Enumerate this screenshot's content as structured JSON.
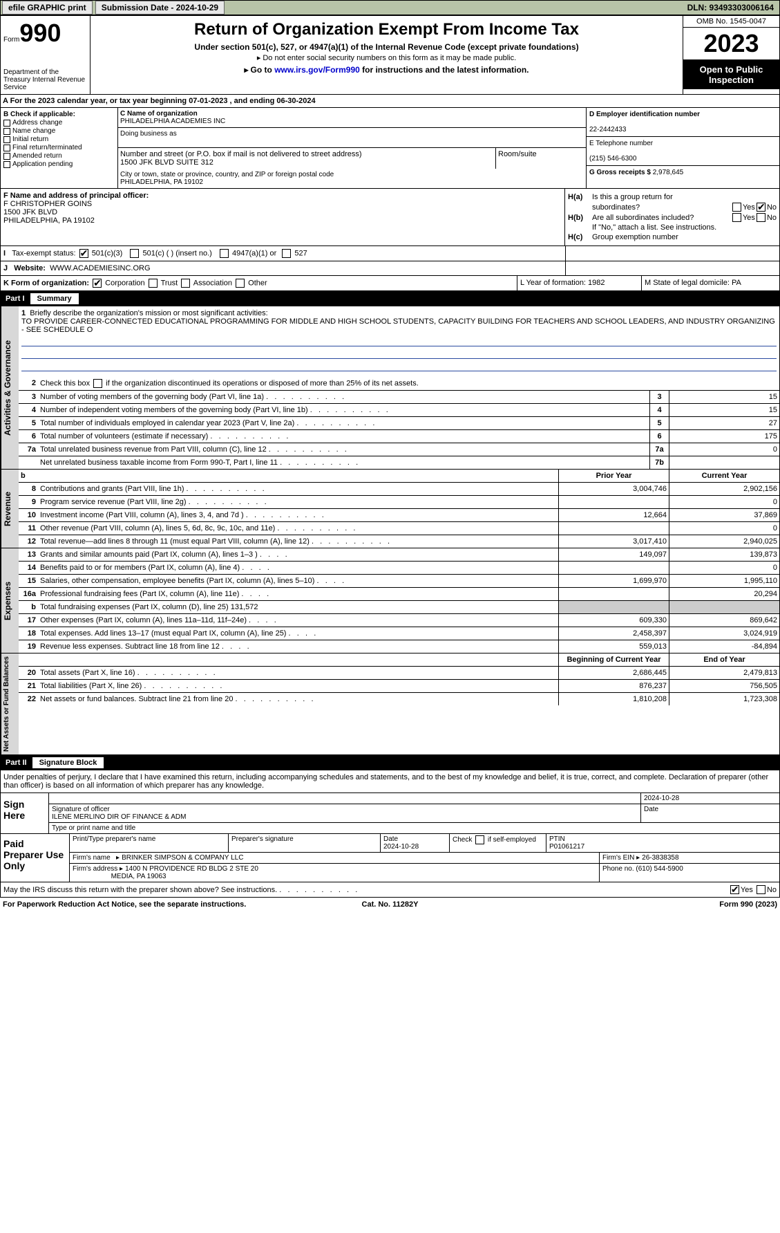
{
  "topbar": {
    "efile": "efile GRAPHIC print",
    "submission": "Submission Date - 2024-10-29",
    "dln": "DLN: 93493303006164"
  },
  "header": {
    "form_word": "Form",
    "form_num": "990",
    "title": "Return of Organization Exempt From Income Tax",
    "sub1": "Under section 501(c), 527, or 4947(a)(1) of the Internal Revenue Code (except private foundations)",
    "sub2": "Do not enter social security numbers on this form as it may be made public.",
    "sub3_pre": "Go to ",
    "sub3_link": "www.irs.gov/Form990",
    "sub3_post": " for instructions and the latest information.",
    "dept": "Department of the Treasury Internal Revenue Service",
    "omb": "OMB No. 1545-0047",
    "year": "2023",
    "inspect": "Open to Public Inspection"
  },
  "lineA": "A For the 2023 calendar year, or tax year beginning 07-01-2023    , and ending 06-30-2024",
  "colB": {
    "title": "B Check if applicable:",
    "items": [
      "Address change",
      "Name change",
      "Initial return",
      "Final return/terminated",
      "Amended return",
      "Application pending"
    ]
  },
  "colC": {
    "name_lbl": "C Name of organization",
    "name": "PHILADELPHIA ACADEMIES INC",
    "dba_lbl": "Doing business as",
    "dba": "",
    "addr_lbl": "Number and street (or P.O. box if mail is not delivered to street address)",
    "addr": "1500 JFK BLVD SUITE 312",
    "room_lbl": "Room/suite",
    "city_lbl": "City or town, state or province, country, and ZIP or foreign postal code",
    "city": "PHILADELPHIA, PA  19102"
  },
  "colD": {
    "ein_lbl": "D Employer identification number",
    "ein": "22-2442433",
    "tel_lbl": "E Telephone number",
    "tel": "(215) 546-6300",
    "gross_lbl": "G Gross receipts $",
    "gross": "2,978,645"
  },
  "secF": {
    "lbl": "F  Name and address of principal officer:",
    "name": "F CHRISTOPHER GOINS",
    "addr1": "1500 JFK BLVD",
    "addr2": "PHILADELPHIA, PA  19102"
  },
  "secH": {
    "ha": "Is this a group return for",
    "ha2": "subordinates?",
    "hb": "Are all subordinates included?",
    "hb2": "If \"No,\" attach a list. See instructions.",
    "hc": "Group exemption number"
  },
  "secI": {
    "lbl": "Tax-exempt status:",
    "o1": "501(c)(3)",
    "o2": "501(c) (  ) (insert no.)",
    "o3": "4947(a)(1) or",
    "o4": "527"
  },
  "secJ": {
    "lbl": "Website:",
    "val": "WWW.ACADEMIESINC.ORG"
  },
  "secK": {
    "lbl": "K Form of organization:",
    "o1": "Corporation",
    "o2": "Trust",
    "o3": "Association",
    "o4": "Other",
    "L": "L Year of formation: 1982",
    "M": "M State of legal domicile: PA"
  },
  "part1": {
    "label": "Part I",
    "title": "Summary"
  },
  "summary": {
    "gov": {
      "tab": "Activities & Governance",
      "l1_lbl": "Briefly describe the organization's mission or most significant activities:",
      "l1_val": "TO PROVIDE CAREER-CONNECTED EDUCATIONAL PROGRAMMING FOR MIDDLE AND HIGH SCHOOL STUDENTS, CAPACITY BUILDING FOR TEACHERS AND SCHOOL LEADERS, AND INDUSTRY ORGANIZING - SEE SCHEDULE O",
      "l2": "Check this box       if the organization discontinued its operations or disposed of more than 25% of its net assets.",
      "l3": "Number of voting members of the governing body (Part VI, line 1a)",
      "l3v": "15",
      "l4": "Number of independent voting members of the governing body (Part VI, line 1b)",
      "l4v": "15",
      "l5": "Total number of individuals employed in calendar year 2023 (Part V, line 2a)",
      "l5v": "27",
      "l6": "Total number of volunteers (estimate if necessary)",
      "l6v": "175",
      "l7a": "Total unrelated business revenue from Part VIII, column (C), line 12",
      "l7av": "0",
      "l7b": "Net unrelated business taxable income from Form 990-T, Part I, line 11",
      "l7bv": ""
    },
    "rev": {
      "tab": "Revenue",
      "hdr_prior": "Prior Year",
      "hdr_cur": "Current Year",
      "rows": [
        {
          "n": "8",
          "t": "Contributions and grants (Part VIII, line 1h)",
          "p": "3,004,746",
          "c": "2,902,156"
        },
        {
          "n": "9",
          "t": "Program service revenue (Part VIII, line 2g)",
          "p": "",
          "c": "0"
        },
        {
          "n": "10",
          "t": "Investment income (Part VIII, column (A), lines 3, 4, and 7d )",
          "p": "12,664",
          "c": "37,869"
        },
        {
          "n": "11",
          "t": "Other revenue (Part VIII, column (A), lines 5, 6d, 8c, 9c, 10c, and 11e)",
          "p": "",
          "c": "0"
        },
        {
          "n": "12",
          "t": "Total revenue—add lines 8 through 11 (must equal Part VIII, column (A), line 12)",
          "p": "3,017,410",
          "c": "2,940,025"
        }
      ]
    },
    "exp": {
      "tab": "Expenses",
      "rows": [
        {
          "n": "13",
          "t": "Grants and similar amounts paid (Part IX, column (A), lines 1–3 )",
          "p": "149,097",
          "c": "139,873"
        },
        {
          "n": "14",
          "t": "Benefits paid to or for members (Part IX, column (A), line 4)",
          "p": "",
          "c": "0"
        },
        {
          "n": "15",
          "t": "Salaries, other compensation, employee benefits (Part IX, column (A), lines 5–10)",
          "p": "1,699,970",
          "c": "1,995,110"
        },
        {
          "n": "16a",
          "t": "Professional fundraising fees (Part IX, column (A), line 11e)",
          "p": "",
          "c": "20,294"
        },
        {
          "n": "b",
          "t": "Total fundraising expenses (Part IX, column (D), line 25) 131,572",
          "p": "grey",
          "c": "grey"
        },
        {
          "n": "17",
          "t": "Other expenses (Part IX, column (A), lines 11a–11d, 11f–24e)",
          "p": "609,330",
          "c": "869,642"
        },
        {
          "n": "18",
          "t": "Total expenses. Add lines 13–17 (must equal Part IX, column (A), line 25)",
          "p": "2,458,397",
          "c": "3,024,919"
        },
        {
          "n": "19",
          "t": "Revenue less expenses. Subtract line 18 from line 12",
          "p": "559,013",
          "c": "-84,894"
        }
      ]
    },
    "net": {
      "tab": "Net Assets or Fund Balances",
      "hdr_beg": "Beginning of Current Year",
      "hdr_end": "End of Year",
      "rows": [
        {
          "n": "20",
          "t": "Total assets (Part X, line 16)",
          "p": "2,686,445",
          "c": "2,479,813"
        },
        {
          "n": "21",
          "t": "Total liabilities (Part X, line 26)",
          "p": "876,237",
          "c": "756,505"
        },
        {
          "n": "22",
          "t": "Net assets or fund balances. Subtract line 21 from line 20",
          "p": "1,810,208",
          "c": "1,723,308"
        }
      ]
    }
  },
  "part2": {
    "label": "Part II",
    "title": "Signature Block"
  },
  "sig_intro": "Under penalties of perjury, I declare that I have examined this return, including accompanying schedules and statements, and to the best of my knowledge and belief, it is true, correct, and complete. Declaration of preparer (other than officer) is based on all information of which preparer has any knowledge.",
  "sign": {
    "lbl": "Sign Here",
    "date": "2024-10-28",
    "sig_lbl": "Signature of officer",
    "name": "ILENE MERLINO  DIR OF FINANCE & ADM",
    "type_lbl": "Type or print name and title"
  },
  "paid": {
    "lbl": "Paid Preparer Use Only",
    "r1": {
      "c1": "Print/Type preparer's name",
      "c2": "Preparer's signature",
      "c3": "Date",
      "c3v": "2024-10-28",
      "c4": "Check       if self-employed",
      "c5": "PTIN",
      "c5v": "P01061217"
    },
    "r2": {
      "c1": "Firm's name",
      "c1v": "BRINKER SIMPSON & COMPANY LLC",
      "c2": "Firm's EIN",
      "c2v": "26-3838358"
    },
    "r3": {
      "c1": "Firm's address",
      "c1v": "1400 N PROVIDENCE RD BLDG 2 STE 20",
      "c1v2": "MEDIA, PA  19063",
      "c2": "Phone no.",
      "c2v": "(610) 544-5900"
    }
  },
  "discuss": "May the IRS discuss this return with the preparer shown above? See instructions.",
  "footer": {
    "l": "For Paperwork Reduction Act Notice, see the separate instructions.",
    "c": "Cat. No. 11282Y",
    "r": "Form 990 (2023)"
  }
}
